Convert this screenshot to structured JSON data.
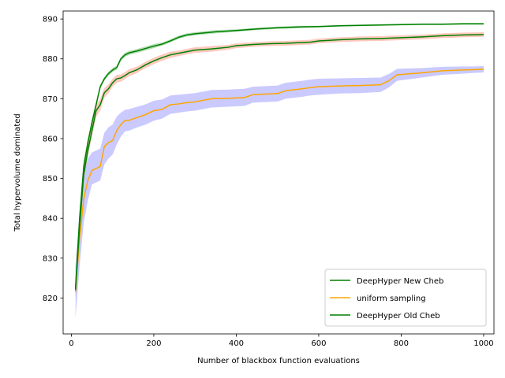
{
  "chart_data": {
    "type": "line",
    "title": "",
    "xlabel": "Number of blackbox function evaluations",
    "ylabel": "Total hypervolume dominated",
    "xlim": [
      -20,
      1025
    ],
    "ylim": [
      811,
      892
    ],
    "xticks": [
      0,
      200,
      400,
      600,
      800,
      1000
    ],
    "yticks": [
      820,
      830,
      840,
      850,
      860,
      870,
      880,
      890
    ],
    "grid": false,
    "legend_position": "lower-right",
    "series": [
      {
        "name": "DeepHyper New Cheb",
        "color": "#008000",
        "band_color": "#2ca02c",
        "x": [
          10,
          20,
          30,
          40,
          50,
          60,
          70,
          80,
          90,
          100,
          110,
          120,
          130,
          140,
          160,
          180,
          200,
          220,
          240,
          260,
          280,
          300,
          350,
          400,
          450,
          500,
          550,
          600,
          650,
          700,
          750,
          800,
          850,
          900,
          950,
          1000
        ],
        "y": [
          822.5,
          840,
          853,
          859,
          864,
          868.5,
          873,
          875,
          876.3,
          877.2,
          877.8,
          880,
          881,
          881.5,
          882,
          882.6,
          883.2,
          883.7,
          884.5,
          885.4,
          886,
          886.3,
          886.8,
          887.1,
          887.5,
          887.8,
          888,
          888.1,
          888.3,
          888.4,
          888.5,
          888.6,
          888.7,
          888.7,
          888.8,
          888.8
        ],
        "lower": [
          821.5,
          838,
          851.5,
          858,
          863,
          867.8,
          872.5,
          874.5,
          875.8,
          876.7,
          877.3,
          879.5,
          880.5,
          881,
          881.5,
          882.1,
          882.7,
          883.3,
          884.1,
          885,
          885.6,
          885.9,
          886.4,
          886.8,
          887.2,
          887.5,
          887.7,
          887.9,
          888.1,
          888.2,
          888.3,
          888.4,
          888.5,
          888.5,
          888.6,
          888.6
        ],
        "upper": [
          823.5,
          842,
          854.5,
          860,
          865,
          869.2,
          873.5,
          875.5,
          876.8,
          877.7,
          878.3,
          880.5,
          881.5,
          882,
          882.5,
          883.1,
          883.7,
          884.1,
          884.9,
          885.8,
          886.4,
          886.7,
          887.2,
          887.4,
          887.8,
          888.1,
          888.3,
          888.3,
          888.5,
          888.6,
          888.7,
          888.8,
          888.9,
          888.9,
          889,
          889
        ]
      },
      {
        "name": "uniform sampling",
        "color": "#ffa500",
        "band_color": "#6666ff",
        "x": [
          10,
          20,
          30,
          40,
          50,
          60,
          70,
          80,
          90,
          100,
          110,
          120,
          130,
          140,
          160,
          180,
          200,
          220,
          240,
          260,
          280,
          300,
          340,
          380,
          420,
          440,
          480,
          500,
          520,
          560,
          580,
          600,
          650,
          700,
          750,
          770,
          790,
          850,
          900,
          950,
          980,
          1000
        ],
        "y": [
          821.5,
          835,
          845,
          849.5,
          852,
          852.5,
          853,
          858,
          859,
          859.5,
          862,
          863.5,
          864.5,
          864.6,
          865.3,
          866,
          867,
          867.3,
          868.5,
          868.7,
          869,
          869.2,
          870,
          870.1,
          870.3,
          871,
          871.2,
          871.3,
          872,
          872.5,
          872.8,
          873,
          873.2,
          873.3,
          873.5,
          874.5,
          876,
          876.5,
          877,
          877.2,
          877.3,
          877.4
        ],
        "lower": [
          815,
          828,
          839,
          844.5,
          848.5,
          849,
          849.5,
          853.5,
          855,
          856,
          858.5,
          860.5,
          861.8,
          862,
          862.8,
          863.5,
          864.5,
          865,
          866.2,
          866.5,
          866.8,
          867,
          867.8,
          868,
          868.2,
          869,
          869.2,
          869.3,
          870,
          870.5,
          870.8,
          871,
          871.3,
          871.4,
          871.7,
          872.8,
          874.5,
          875.3,
          876,
          876.3,
          876.5,
          876.6
        ],
        "upper": [
          828,
          842,
          851,
          855,
          856.5,
          857,
          857.5,
          861.5,
          862.8,
          863.5,
          865.5,
          866.5,
          867.2,
          867.4,
          868,
          868.6,
          869.5,
          869.8,
          870.8,
          871,
          871.2,
          871.4,
          872.2,
          872.3,
          872.5,
          873,
          873.2,
          873.3,
          874,
          874.5,
          874.8,
          875,
          875.1,
          875.2,
          875.3,
          876.2,
          877.5,
          877.7,
          878,
          878.1,
          878.1,
          878.2
        ]
      },
      {
        "name": "DeepHyper Old Cheb",
        "color": "#008000",
        "band_color": "#ff6347",
        "x": [
          10,
          20,
          30,
          40,
          50,
          60,
          70,
          80,
          90,
          100,
          110,
          120,
          130,
          140,
          160,
          180,
          200,
          220,
          240,
          260,
          280,
          300,
          340,
          380,
          400,
          440,
          480,
          520,
          560,
          580,
          600,
          650,
          700,
          750,
          800,
          850,
          900,
          950,
          1000
        ],
        "y": [
          822,
          838,
          851,
          857,
          862,
          867,
          868.5,
          871.5,
          872.5,
          874,
          875,
          875.2,
          875.8,
          876.5,
          877.3,
          878.5,
          879.5,
          880.3,
          881,
          881.4,
          881.8,
          882.2,
          882.5,
          882.9,
          883.3,
          883.6,
          883.8,
          883.9,
          884.1,
          884.2,
          884.5,
          884.8,
          885,
          885.1,
          885.3,
          885.5,
          885.8,
          886,
          886.1
        ],
        "lower": [
          820.5,
          836,
          849.5,
          855.5,
          860.5,
          865.5,
          867,
          870.3,
          871.4,
          873,
          874,
          874.3,
          874.9,
          875.6,
          876.5,
          877.7,
          878.7,
          879.5,
          880.2,
          880.7,
          881.1,
          881.5,
          881.8,
          882.3,
          882.7,
          883,
          883.2,
          883.3,
          883.5,
          883.6,
          883.9,
          884.2,
          884.4,
          884.5,
          884.7,
          884.9,
          885.2,
          885.4,
          885.5
        ],
        "upper": [
          823.5,
          840,
          852.5,
          858.5,
          863.5,
          868.5,
          870,
          872.7,
          873.6,
          875,
          876,
          876.1,
          876.7,
          877.4,
          878.1,
          879.3,
          880.3,
          881.1,
          881.8,
          882.1,
          882.5,
          882.9,
          883.2,
          883.5,
          883.9,
          884.2,
          884.4,
          884.5,
          884.7,
          884.8,
          885.1,
          885.4,
          885.6,
          885.7,
          885.9,
          886.1,
          886.4,
          886.6,
          886.7
        ]
      }
    ]
  }
}
